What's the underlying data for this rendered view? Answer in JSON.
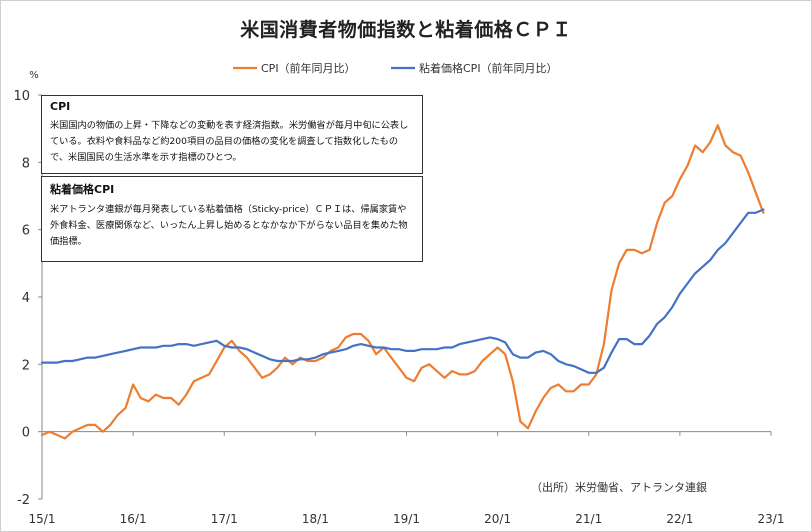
{
  "title": "米国消費者物価指数と粘着価格ＣＰＩ",
  "source": "（出所）米労働省、アトランタ連銀",
  "notes": [
    {
      "heading": "CPI",
      "body": "米国国内の物価の上昇・下降などの変動を表す経済指数。米労働省が毎月中旬に公表している。衣料や食料品など約200項目の品目の価格の変化を調査して指数化したもので、米国国民の生活水準を示す指標のひとつ。"
    },
    {
      "heading": "粘着価格CPI",
      "body": "米アトランタ連銀が毎月発表している粘着価格（Sticky-price）ＣＰＩは、帰属家賃や外食料金、医療関係など、いったん上昇し始めるとなかなか下がらない品目を集めた物価指標。"
    }
  ],
  "chart_data": {
    "type": "line",
    "title": "米国消費者物価指数と粘着価格ＣＰＩ",
    "ylabel": "%",
    "xlabel": "",
    "ylim": [
      -2,
      10
    ],
    "yticks": [
      -2,
      0,
      2,
      4,
      6,
      8,
      10
    ],
    "x_start": "2015-01",
    "x_ticks": [
      "15/1",
      "16/1",
      "17/1",
      "18/1",
      "19/1",
      "20/1",
      "21/1",
      "22/1",
      "23/1"
    ],
    "legend_position": "top-center",
    "grid": false,
    "series": [
      {
        "name": "CPI（前年同月比）",
        "color": "#ED7D31",
        "values": [
          -0.1,
          0.0,
          -0.1,
          -0.2,
          0.0,
          0.1,
          0.2,
          0.2,
          0.0,
          0.2,
          0.5,
          0.7,
          1.4,
          1.0,
          0.9,
          1.1,
          1.0,
          1.0,
          0.8,
          1.1,
          1.5,
          1.6,
          1.7,
          2.1,
          2.5,
          2.7,
          2.4,
          2.2,
          1.9,
          1.6,
          1.7,
          1.9,
          2.2,
          2.0,
          2.2,
          2.1,
          2.1,
          2.2,
          2.4,
          2.5,
          2.8,
          2.9,
          2.9,
          2.7,
          2.3,
          2.5,
          2.2,
          1.9,
          1.6,
          1.5,
          1.9,
          2.0,
          1.8,
          1.6,
          1.8,
          1.7,
          1.7,
          1.8,
          2.1,
          2.3,
          2.5,
          2.3,
          1.5,
          0.3,
          0.1,
          0.6,
          1.0,
          1.3,
          1.4,
          1.2,
          1.2,
          1.4,
          1.4,
          1.7,
          2.6,
          4.2,
          5.0,
          5.4,
          5.4,
          5.3,
          5.4,
          6.2,
          6.8,
          7.0,
          7.5,
          7.9,
          8.5,
          8.3,
          8.6,
          9.1,
          8.5,
          8.3,
          8.2,
          7.7,
          7.1,
          6.5
        ]
      },
      {
        "name": "粘着価格CPI（前年同月比）",
        "color": "#4472C4",
        "values": [
          2.05,
          2.05,
          2.05,
          2.1,
          2.1,
          2.15,
          2.2,
          2.2,
          2.25,
          2.3,
          2.35,
          2.4,
          2.45,
          2.5,
          2.5,
          2.5,
          2.55,
          2.55,
          2.6,
          2.6,
          2.55,
          2.6,
          2.65,
          2.7,
          2.55,
          2.5,
          2.5,
          2.45,
          2.35,
          2.25,
          2.15,
          2.1,
          2.1,
          2.1,
          2.15,
          2.15,
          2.2,
          2.3,
          2.35,
          2.4,
          2.45,
          2.55,
          2.6,
          2.55,
          2.5,
          2.5,
          2.45,
          2.45,
          2.4,
          2.4,
          2.45,
          2.45,
          2.45,
          2.5,
          2.5,
          2.6,
          2.65,
          2.7,
          2.75,
          2.8,
          2.75,
          2.65,
          2.3,
          2.2,
          2.2,
          2.35,
          2.4,
          2.3,
          2.1,
          2.0,
          1.95,
          1.85,
          1.75,
          1.75,
          1.9,
          2.35,
          2.75,
          2.75,
          2.6,
          2.6,
          2.85,
          3.2,
          3.4,
          3.7,
          4.1,
          4.4,
          4.7,
          4.9,
          5.1,
          5.4,
          5.6,
          5.9,
          6.2,
          6.5,
          6.5,
          6.6
        ]
      }
    ]
  }
}
